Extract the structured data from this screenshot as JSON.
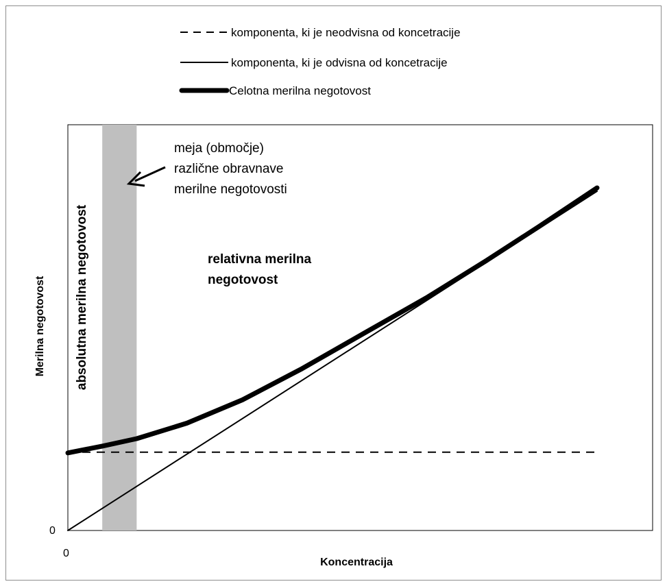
{
  "chart_data": {
    "type": "line",
    "xlabel": "Koncentracija",
    "ylabel": "Merilna negotovost",
    "x_tick_labels": [
      "0"
    ],
    "y_tick_labels": [
      "0"
    ],
    "xlim": [
      0,
      100
    ],
    "ylim": [
      0,
      100
    ],
    "grid": false,
    "legend_placement": "top",
    "series": [
      {
        "name": "komponenta, ki je neodvisna od koncetracije",
        "style": "dashed",
        "stroke": "thin",
        "color": "#000000",
        "x": [
          0,
          100
        ],
        "y": [
          20.8,
          20.8
        ]
      },
      {
        "name": "komponenta, ki je odvisna od koncetracije",
        "style": "solid",
        "stroke": "thin",
        "color": "#000000",
        "x": [
          0,
          100
        ],
        "y": [
          0,
          90.1
        ]
      },
      {
        "name": "Celotna merilna negotovost",
        "style": "solid",
        "stroke": "thick",
        "color": "#000000",
        "x": [
          0,
          6.5,
          13,
          22.5,
          33,
          44,
          56,
          68,
          79,
          89,
          100
        ],
        "y": [
          20.6,
          22.4,
          24.4,
          28.5,
          34.7,
          42.8,
          52.4,
          62.0,
          71.6,
          80.7,
          91.0
        ]
      }
    ],
    "band": {
      "x_from": 6.5,
      "x_to": 13,
      "color": "#bfbfbf"
    },
    "annotations": [
      {
        "lines": [
          "meja (območje)",
          "različne obravnave",
          "merilne negotovosti"
        ],
        "weight": "normal",
        "arrow_to": "band"
      },
      {
        "lines": [
          "relativna merilna",
          "negotovost"
        ],
        "weight": "bold"
      },
      {
        "lines": [
          "absolutna merilna negotovost"
        ],
        "weight": "bold",
        "orientation": "vertical"
      }
    ]
  }
}
